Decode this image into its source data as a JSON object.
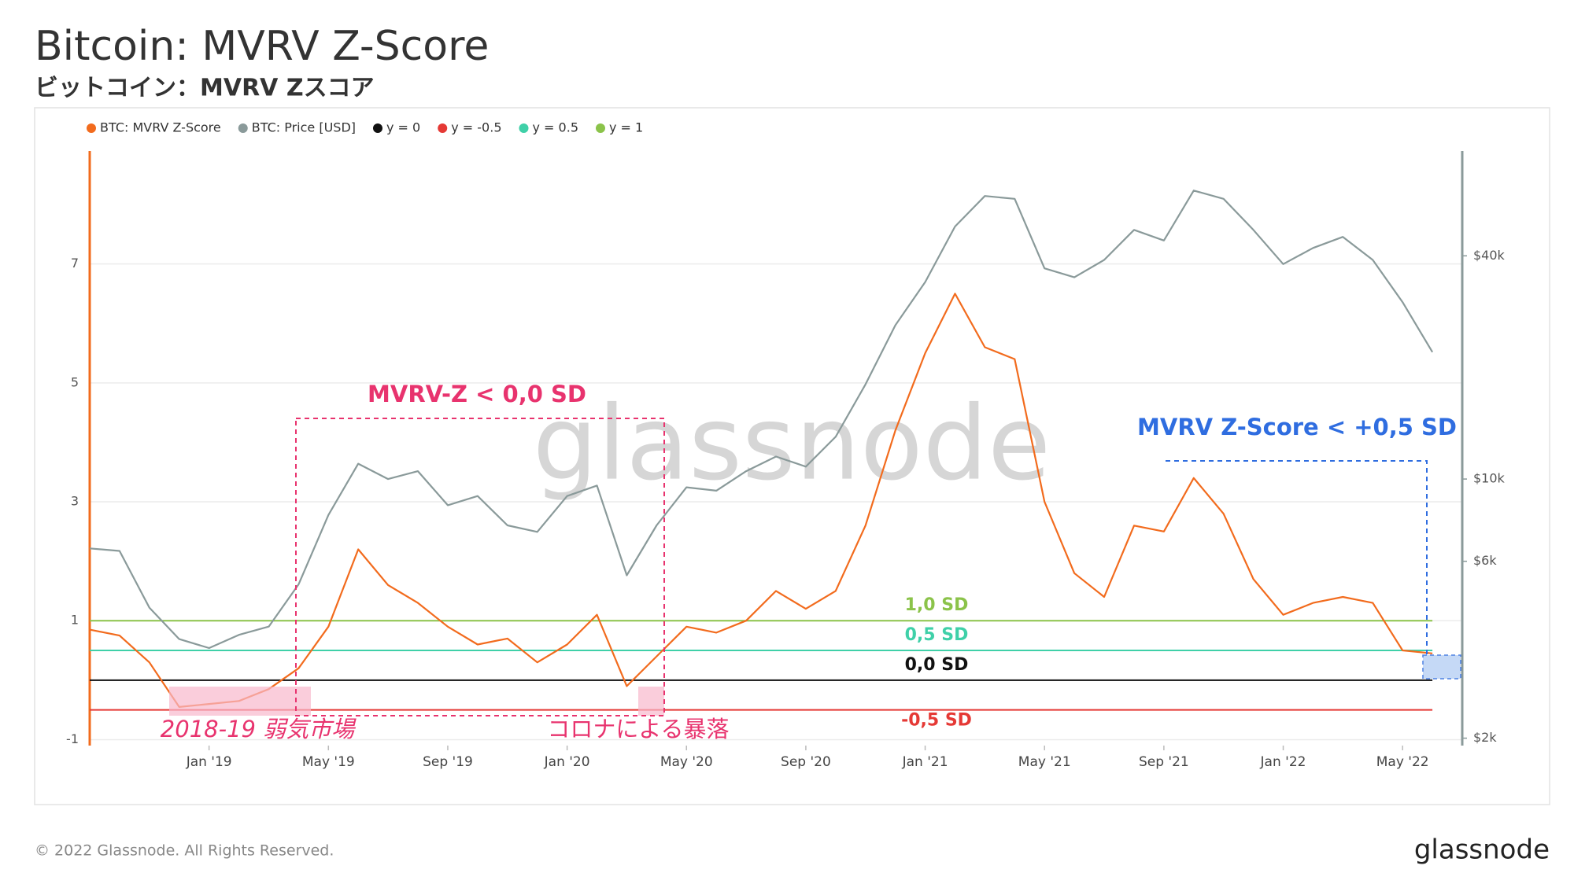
{
  "chart_data": {
    "type": "line",
    "title": "Bitcoin: MVRV Z-Score",
    "subtitle": "ビットコイン：MVRV Zスコア",
    "x": [
      "2018-09",
      "2018-10",
      "2018-11",
      "2018-12",
      "2019-01",
      "2019-02",
      "2019-03",
      "2019-04",
      "2019-05",
      "2019-06",
      "2019-07",
      "2019-08",
      "2019-09",
      "2019-10",
      "2019-11",
      "2019-12",
      "2020-01",
      "2020-02",
      "2020-03",
      "2020-04",
      "2020-05",
      "2020-06",
      "2020-07",
      "2020-08",
      "2020-09",
      "2020-10",
      "2020-11",
      "2020-12",
      "2021-01",
      "2021-02",
      "2021-03",
      "2021-04",
      "2021-05",
      "2021-06",
      "2021-07",
      "2021-08",
      "2021-09",
      "2021-10",
      "2021-11",
      "2021-12",
      "2022-01",
      "2022-02",
      "2022-03",
      "2022-04",
      "2022-05",
      "2022-06"
    ],
    "series": [
      {
        "name": "BTC: MVRV Z-Score",
        "color": "#f26b1d",
        "axis": "y",
        "values": [
          0.85,
          0.75,
          0.3,
          -0.45,
          -0.4,
          -0.35,
          -0.15,
          0.2,
          0.9,
          2.2,
          1.6,
          1.3,
          0.9,
          0.6,
          0.7,
          0.3,
          0.6,
          1.1,
          -0.1,
          0.4,
          0.9,
          0.8,
          1.0,
          1.5,
          1.2,
          1.5,
          2.6,
          4.2,
          5.5,
          6.5,
          5.6,
          5.4,
          3.0,
          1.8,
          1.4,
          2.6,
          2.5,
          3.4,
          2.8,
          1.7,
          1.1,
          1.3,
          1.4,
          1.3,
          0.5,
          0.45
        ]
      },
      {
        "name": "BTC: Price [USD]",
        "color": "#8a9a9a",
        "axis": "y2",
        "values": [
          6500,
          6400,
          4500,
          3700,
          3500,
          3800,
          4000,
          5200,
          8000,
          11000,
          10000,
          10500,
          8500,
          9000,
          7500,
          7200,
          9000,
          9600,
          5500,
          7500,
          9500,
          9300,
          10500,
          11500,
          10800,
          13000,
          18000,
          26000,
          34000,
          48000,
          58000,
          57000,
          37000,
          35000,
          39000,
          47000,
          44000,
          60000,
          57000,
          47000,
          38000,
          42000,
          45000,
          39000,
          30000,
          22000
        ]
      }
    ],
    "reference_lines": [
      {
        "name": "y = 0",
        "value": 0,
        "color": "#111111",
        "label": "0,0 SD"
      },
      {
        "name": "y = -0.5",
        "value": -0.5,
        "color": "#e53935",
        "label": "-0,5 SD"
      },
      {
        "name": "y = 0.5",
        "value": 0.5,
        "color": "#3fd0a8",
        "label": "0,5 SD"
      },
      {
        "name": "y = 1",
        "value": 1,
        "color": "#8bc34a",
        "label": "1,0 SD"
      }
    ],
    "xlim": [
      "2018-09",
      "2022-07"
    ],
    "xticks": [
      {
        "value": "2019-01",
        "label": "Jan '19"
      },
      {
        "value": "2019-05",
        "label": "May '19"
      },
      {
        "value": "2019-09",
        "label": "Sep '19"
      },
      {
        "value": "2020-01",
        "label": "Jan '20"
      },
      {
        "value": "2020-05",
        "label": "May '20"
      },
      {
        "value": "2020-09",
        "label": "Sep '20"
      },
      {
        "value": "2021-01",
        "label": "Jan '21"
      },
      {
        "value": "2021-05",
        "label": "May '21"
      },
      {
        "value": "2021-09",
        "label": "Sep '21"
      },
      {
        "value": "2022-01",
        "label": "Jan '22"
      },
      {
        "value": "2022-05",
        "label": "May '22"
      }
    ],
    "ylim": [
      -1.1,
      8.9
    ],
    "yticks": [
      -1,
      1,
      3,
      5,
      7
    ],
    "y2lim": [
      1910,
      76700
    ],
    "y2scale": "log",
    "y2ticks": [
      {
        "value": 2000,
        "label": "$2k"
      },
      {
        "value": 6000,
        "label": "$6k"
      },
      {
        "value": 10000,
        "label": "$10k"
      },
      {
        "value": 40000,
        "label": "$40k"
      }
    ],
    "grid": true,
    "annotations": [
      "MVRV-Z < 0,0 SD",
      "MVRV Z-Score < +0,5 SD",
      "2018-19 弱気市場",
      "コロナによる暴落"
    ],
    "watermark": "glassnode"
  },
  "footer": {
    "copyright": "© 2022 Glassnode. All Rights Reserved.",
    "logo": "glassnode"
  }
}
